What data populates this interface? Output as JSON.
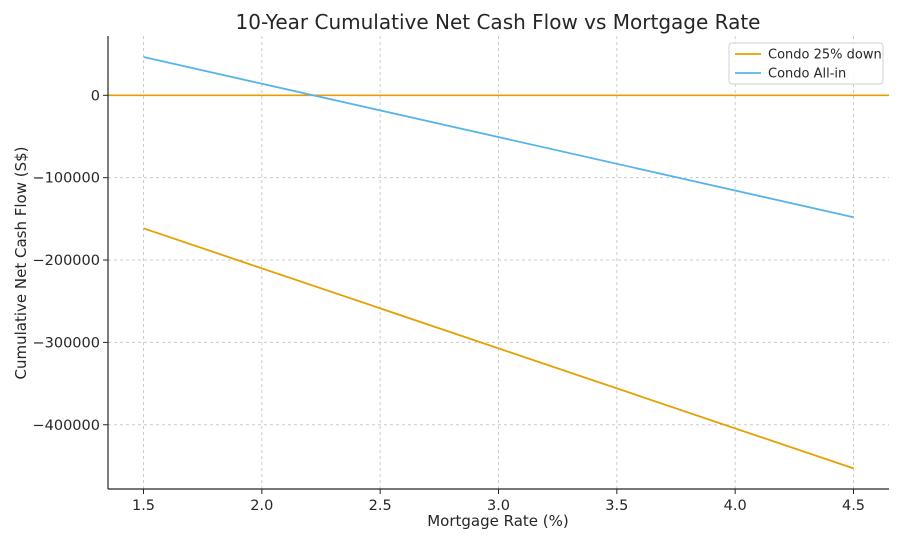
{
  "chart_data": {
    "type": "line",
    "title": "10-Year Cumulative Net Cash Flow vs Mortgage Rate",
    "xlabel": "Mortgage Rate (%)",
    "ylabel": "Cumulative Net Cash Flow (S$)",
    "xlim": [
      1.35,
      4.65
    ],
    "ylim": [
      -478000,
      72000
    ],
    "x_ticks": [
      1.5,
      2.0,
      2.5,
      3.0,
      3.5,
      4.0,
      4.5
    ],
    "x_tick_labels": [
      "1.5",
      "2.0",
      "2.5",
      "3.0",
      "3.5",
      "4.0",
      "4.5"
    ],
    "y_ticks": [
      0,
      -100000,
      -200000,
      -300000,
      -400000
    ],
    "y_tick_labels": [
      "0",
      "−100000",
      "−200000",
      "−300000",
      "−400000"
    ],
    "grid": true,
    "legend_position": "top-right",
    "reference_line": {
      "y": 0,
      "color": "#E69F00"
    },
    "series": [
      {
        "name": "Condo 25% down",
        "color": "#E69F00",
        "x": [
          1.5,
          4.5
        ],
        "y": [
          -161500,
          -453000
        ]
      },
      {
        "name": "Condo All-in",
        "color": "#56B4E9",
        "x": [
          1.5,
          4.5
        ],
        "y": [
          46500,
          -148000
        ]
      }
    ]
  }
}
